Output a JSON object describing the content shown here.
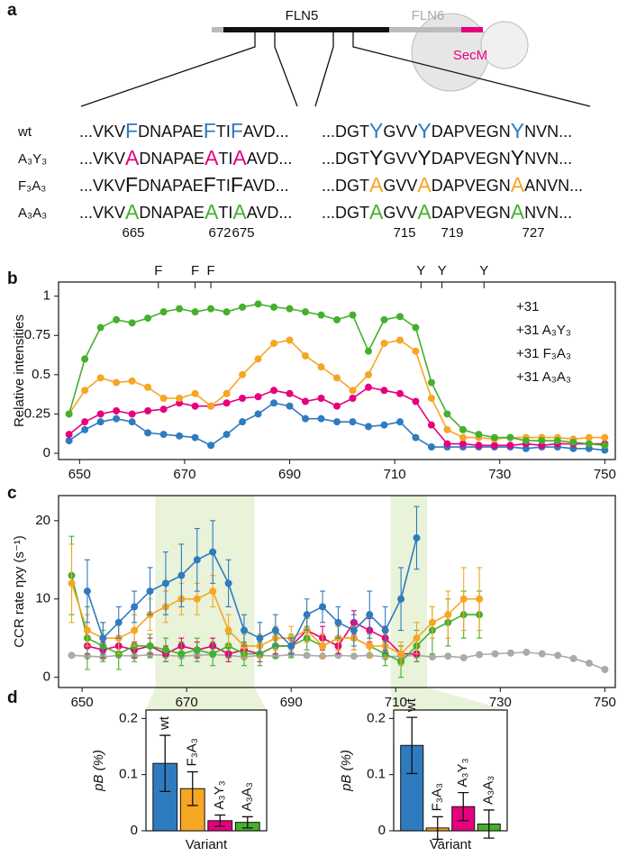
{
  "panel_labels": [
    "a",
    "b",
    "c",
    "d"
  ],
  "diagram": {
    "domains": {
      "fln5": "FLN5",
      "fln6": "FLN6",
      "secm": "SecM"
    },
    "rows": [
      {
        "label": "wt",
        "color": "#2f7bbf",
        "left_color": "#2f7bbf",
        "right_color": "#2f7bbf",
        "left": [
          "...VKV",
          "F",
          "DNAPAE",
          "F",
          "TI",
          "F",
          "AVD..."
        ],
        "right": [
          "...DGT",
          "Y",
          "GVV",
          "Y",
          "DAPVEGN",
          "Y",
          "NVN..."
        ]
      },
      {
        "label": "A₃Y₃",
        "color": "#e6007e",
        "left_color": "#e6007e",
        "right_color": "#111111",
        "left": [
          "...VKV",
          "A",
          "DNAPAE",
          "A",
          "TI",
          "A",
          "AVD..."
        ],
        "right": [
          "...DGT",
          "Y",
          "GVV",
          "Y",
          "DAPVEGN",
          "Y",
          "NVN..."
        ]
      },
      {
        "label": "F₃A₃",
        "color": "#f5a623",
        "left_color": "#111111",
        "right_color": "#f5a623",
        "left": [
          "...VKV",
          "F",
          "DNAPAE",
          "F",
          "TI",
          "F",
          "AVD..."
        ],
        "right": [
          "...DGT",
          "A",
          "GVV",
          "A",
          "DAPVEGN",
          "A",
          "ANVN..."
        ]
      },
      {
        "label": "A₃A₃",
        "color": "#44b02c",
        "left_color": "#44b02c",
        "right_color": "#44b02c",
        "left": [
          "...VKV",
          "A",
          "DNAPAE",
          "A",
          "TI",
          "A",
          "AVD..."
        ],
        "right": [
          "...DGT",
          "A",
          "GVV",
          "A",
          "DAPVEGN",
          "A",
          "NVN..."
        ]
      }
    ],
    "residue_numbers": [
      665,
      672,
      675,
      715,
      719,
      727
    ],
    "residue_color": "#44b02c"
  },
  "chart_data": [
    {
      "type": "line",
      "y_label": "Relative intensities",
      "x": [
        648,
        651,
        654,
        657,
        660,
        663,
        666,
        669,
        672,
        675,
        678,
        681,
        684,
        687,
        690,
        693,
        696,
        699,
        702,
        705,
        708,
        711,
        714,
        717,
        720,
        723,
        726,
        729,
        732,
        735,
        738,
        741,
        744,
        747,
        750
      ],
      "xlim": [
        646,
        752
      ],
      "xticks": [
        650,
        670,
        690,
        710,
        730,
        750
      ],
      "ylim": [
        -0.04,
        1.09
      ],
      "yticks": [
        0,
        0.25,
        0.5,
        0.75,
        1
      ],
      "legend": "upper right",
      "annotations": [
        {
          "x": 665,
          "label": "F"
        },
        {
          "x": 672,
          "label": "F"
        },
        {
          "x": 675,
          "label": "F"
        },
        {
          "x": 715,
          "label": "Y"
        },
        {
          "x": 719,
          "label": "Y"
        },
        {
          "x": 727,
          "label": "Y"
        }
      ],
      "series": [
        {
          "name": "+31",
          "color": "#2f7bbf",
          "values": [
            0.08,
            0.15,
            0.2,
            0.22,
            0.2,
            0.13,
            0.12,
            0.11,
            0.1,
            0.05,
            0.12,
            0.2,
            0.25,
            0.32,
            0.3,
            0.22,
            0.22,
            0.2,
            0.2,
            0.17,
            0.18,
            0.2,
            0.1,
            0.04,
            0.04,
            0.04,
            0.04,
            0.04,
            0.04,
            0.03,
            0.04,
            0.04,
            0.03,
            0.03,
            0.02
          ]
        },
        {
          "name": "+31 A₃Y₃",
          "color": "#e6007e",
          "values": [
            0.12,
            0.2,
            0.25,
            0.27,
            0.25,
            0.27,
            0.28,
            0.32,
            0.3,
            0.3,
            0.32,
            0.35,
            0.36,
            0.4,
            0.38,
            0.33,
            0.35,
            0.3,
            0.35,
            0.42,
            0.4,
            0.38,
            0.33,
            0.18,
            0.06,
            0.06,
            0.05,
            0.05,
            0.05,
            0.06,
            0.05,
            0.06,
            0.06,
            0.06,
            0.06
          ]
        },
        {
          "name": "+31 F₃A₃",
          "color": "#f5a623",
          "values": [
            0.25,
            0.4,
            0.48,
            0.45,
            0.46,
            0.42,
            0.35,
            0.35,
            0.38,
            0.3,
            0.38,
            0.5,
            0.6,
            0.7,
            0.72,
            0.62,
            0.55,
            0.48,
            0.4,
            0.5,
            0.7,
            0.72,
            0.65,
            0.35,
            0.15,
            0.1,
            0.1,
            0.09,
            0.1,
            0.1,
            0.1,
            0.1,
            0.09,
            0.1,
            0.1
          ]
        },
        {
          "name": "+31 A₃A₃",
          "color": "#44b02c",
          "values": [
            0.25,
            0.6,
            0.8,
            0.85,
            0.83,
            0.86,
            0.9,
            0.92,
            0.9,
            0.92,
            0.9,
            0.93,
            0.95,
            0.93,
            0.92,
            0.9,
            0.88,
            0.85,
            0.88,
            0.65,
            0.85,
            0.87,
            0.8,
            0.45,
            0.25,
            0.15,
            0.12,
            0.1,
            0.1,
            0.08,
            0.08,
            0.08,
            0.07,
            0.06,
            0.05
          ]
        }
      ]
    },
    {
      "type": "line",
      "y_label": "CCR rate ηxy (s⁻¹)",
      "x": [
        648,
        651,
        654,
        657,
        660,
        663,
        666,
        669,
        672,
        675,
        678,
        681,
        684,
        687,
        690,
        693,
        696,
        699,
        702,
        705,
        708,
        711,
        714,
        717,
        720,
        723,
        726,
        729,
        732,
        735,
        738,
        741,
        744,
        747,
        750
      ],
      "xlim": [
        645.5,
        752
      ],
      "xticks": [
        650,
        670,
        690,
        710,
        730,
        750
      ],
      "ylim": [
        -1.3,
        23.2
      ],
      "yticks": [
        0,
        10,
        20
      ],
      "highlight_ranges": [
        [
          664,
          683
        ],
        [
          709,
          716
        ]
      ],
      "highlight_color": "#e8f3da",
      "series": [
        {
          "color": "#aaaaaa",
          "values": [
            2.8,
            2.7,
            2.6,
            2.8,
            2.7,
            2.9,
            2.8,
            2.7,
            2.8,
            2.9,
            2.8,
            2.6,
            2.8,
            2.7,
            2.9,
            2.8,
            2.7,
            2.8,
            2.7,
            2.8,
            2.6,
            2.7,
            2.8,
            2.6,
            2.7,
            2.5,
            2.9,
            3.0,
            3.1,
            3.2,
            3.0,
            2.8,
            2.4,
            1.8,
            1.0
          ]
        },
        {
          "color": "#e6007e",
          "values": [
            null,
            4,
            3.5,
            4,
            3.5,
            4,
            3,
            4,
            3.5,
            4,
            3,
            3.5,
            3,
            4,
            4,
            6,
            5,
            4,
            7,
            6,
            5,
            3,
            3,
            null,
            null,
            null,
            null,
            null,
            null,
            null,
            null,
            null,
            null,
            null,
            null
          ],
          "errors": [
            null,
            1,
            1,
            1,
            1,
            1,
            1,
            1,
            1,
            1,
            1,
            1,
            1,
            1,
            1,
            1.5,
            1.5,
            1,
            1.5,
            1.5,
            1.5,
            1,
            1,
            null,
            null,
            null,
            null,
            null,
            null,
            null,
            null,
            null,
            null,
            null,
            null
          ]
        },
        {
          "color": "#44b02c",
          "values": [
            13,
            5,
            4,
            3,
            4,
            4,
            3.5,
            3,
            3.5,
            3,
            4,
            3,
            3,
            4,
            4,
            5,
            4,
            5,
            5,
            4,
            3,
            2,
            4,
            6,
            7,
            8,
            8,
            null,
            null,
            null,
            null,
            null,
            null,
            null,
            null
          ],
          "errors": [
            5,
            4,
            2,
            2,
            2,
            1.5,
            1.5,
            1.5,
            1.5,
            1.5,
            1.5,
            1.5,
            1.5,
            1.5,
            1.5,
            1.5,
            1.5,
            1.5,
            1.5,
            1.5,
            1.5,
            2,
            2,
            3,
            3,
            3,
            3,
            null,
            null,
            null,
            null,
            null,
            null,
            null,
            null
          ]
        },
        {
          "color": "#f5a623",
          "values": [
            12,
            6,
            5,
            5,
            6,
            8,
            9,
            10,
            10,
            11,
            6,
            4,
            4,
            5,
            5,
            6,
            4,
            5,
            5,
            4,
            4,
            3,
            5,
            7,
            8,
            10,
            10,
            null,
            null,
            null,
            null,
            null,
            null,
            null,
            null
          ],
          "errors": [
            5,
            2,
            2,
            2,
            2,
            2,
            2,
            2,
            2,
            2,
            2,
            1.5,
            1.5,
            1.5,
            1.5,
            1.5,
            1.5,
            1.5,
            1.5,
            1.5,
            1.5,
            1.5,
            2,
            2,
            3,
            4,
            4,
            null,
            null,
            null,
            null,
            null,
            null,
            null,
            null
          ]
        },
        {
          "color": "#2f7bbf",
          "values": [
            null,
            11,
            5,
            7,
            9,
            11,
            12,
            13,
            15,
            16,
            12,
            6,
            5,
            6,
            4,
            8,
            9,
            7,
            6,
            8,
            6,
            10,
            17.8,
            null,
            null,
            null,
            null,
            null,
            null,
            null,
            null,
            null,
            null,
            null,
            null
          ],
          "errors": [
            null,
            4,
            2,
            2,
            2,
            3,
            4,
            4,
            4,
            4,
            3,
            2,
            2,
            2,
            1,
            2,
            2,
            2,
            2,
            3,
            3,
            4,
            4,
            null,
            null,
            null,
            null,
            null,
            null,
            null,
            null,
            null,
            null,
            null,
            null
          ]
        }
      ]
    },
    {
      "type": "bar",
      "x_label": "Variant",
      "y_label": "pB (%)",
      "categories": [
        "wt",
        "F₃A₃",
        "A₃Y₃",
        "A₃A₃"
      ],
      "colors": [
        "#2f7bbf",
        "#f5a623",
        "#e6007e",
        "#44b02c"
      ],
      "values": [
        0.12,
        0.075,
        0.018,
        0.015
      ],
      "errors": [
        0.05,
        0.03,
        0.01,
        0.01
      ],
      "ylim": [
        0,
        0.215
      ],
      "yticks": [
        0,
        0.1,
        0.2
      ]
    },
    {
      "type": "bar",
      "x_label": "Variant",
      "y_label": "pB (%)",
      "categories": [
        "wt",
        "F₃A₃",
        "A₃Y₃",
        "A₃A₃"
      ],
      "colors": [
        "#2f7bbf",
        "#f5a623",
        "#e6007e",
        "#44b02c"
      ],
      "values": [
        0.152,
        0.005,
        0.043,
        0.012
      ],
      "errors": [
        0.05,
        0.02,
        0.025,
        0.025
      ],
      "ylim": [
        0,
        0.215
      ],
      "yticks": [
        0,
        0.1,
        0.2
      ]
    }
  ]
}
